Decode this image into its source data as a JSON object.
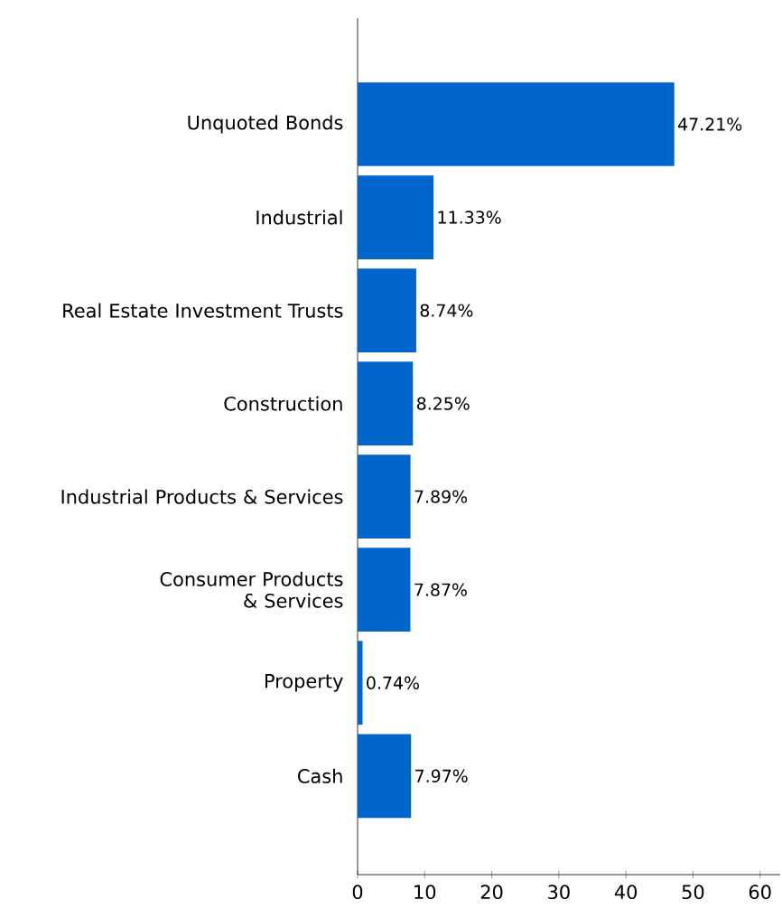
{
  "chart_data": {
    "type": "bar",
    "orientation": "horizontal",
    "categories": [
      "Unquoted Bonds",
      "Industrial",
      "Real Estate Investment Trusts",
      "Construction",
      "Industrial Products & Services",
      "Consumer Products & Services",
      "Property",
      "Cash"
    ],
    "values": [
      47.21,
      11.33,
      8.74,
      8.25,
      7.89,
      7.87,
      0.74,
      7.97
    ],
    "value_labels": [
      "47.21%",
      "11.33%",
      "8.74%",
      "8.25%",
      "7.89%",
      "7.87%",
      "0.74%",
      "7.97%"
    ],
    "color": "#0066cc",
    "xlim": [
      0,
      63
    ],
    "xticks": [
      0,
      10,
      20,
      30,
      40,
      50,
      60
    ]
  }
}
